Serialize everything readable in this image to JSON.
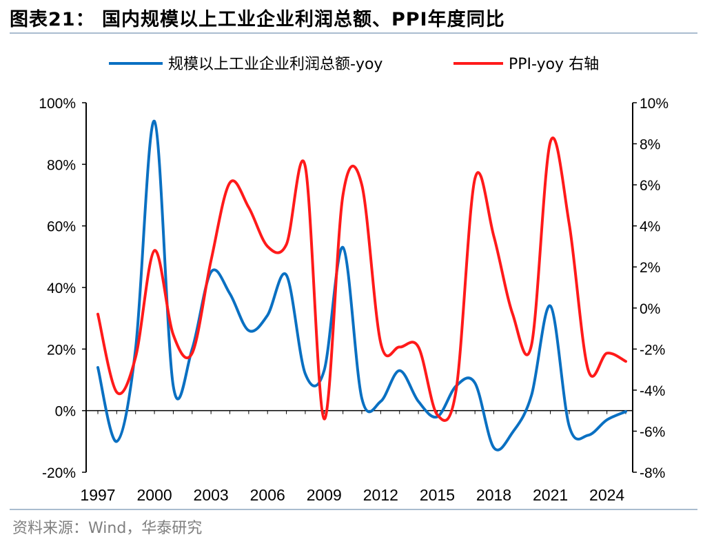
{
  "header": {
    "title": "图表21：  国内规模以上工业企业利润总额、PPI年度同比"
  },
  "footer": {
    "source": "资料来源：Wind，华泰研究"
  },
  "colors": {
    "profit_series": "#0a70c2",
    "ppi_series": "#ff1a1a",
    "axis": "#000000",
    "rule": "#a9bccf"
  },
  "chart_data": {
    "type": "line",
    "title": "",
    "x_min": 1997,
    "x_max": 2025,
    "x_tick_labels": [
      "1997",
      "2000",
      "2003",
      "2006",
      "2009",
      "2012",
      "2015",
      "2018",
      "2021",
      "2024"
    ],
    "x_tick_values": [
      1997,
      2000,
      2003,
      2006,
      2009,
      2012,
      2015,
      2018,
      2021,
      2024
    ],
    "left_axis": {
      "min": -20,
      "max": 100,
      "step": 20,
      "format": "percent",
      "ticks": [
        "-20%",
        "0%",
        "20%",
        "40%",
        "60%",
        "80%",
        "100%"
      ]
    },
    "right_axis": {
      "min": -8,
      "max": 10,
      "step": 2,
      "format": "percent",
      "ticks": [
        "-8%",
        "-6%",
        "-4%",
        "-2%",
        "0%",
        "2%",
        "4%",
        "6%",
        "8%",
        "10%"
      ]
    },
    "legend": {
      "position": "top-center"
    },
    "grid": false,
    "series": [
      {
        "name": "规模以上工业企业利润总额-yoy",
        "axis": "left",
        "color": "#0a70c2",
        "x": [
          1997,
          1998,
          1999,
          2000,
          2001,
          2002,
          2003,
          2004,
          2005,
          2006,
          2007,
          2008,
          2009,
          2010,
          2011,
          2012,
          2013,
          2014,
          2015,
          2016,
          2017,
          2018,
          2019,
          2020,
          2021,
          2022,
          2023,
          2024,
          2025
        ],
        "values": [
          14,
          -10,
          20,
          94,
          8,
          20,
          45,
          38,
          26,
          31,
          44,
          12,
          13,
          53,
          4,
          3,
          13,
          3,
          -2,
          8,
          9,
          -12,
          -7,
          5,
          34,
          -5,
          -8,
          -3,
          -0.3
        ]
      },
      {
        "name": "PPI-yoy 右轴",
        "axis": "right",
        "color": "#ff1a1a",
        "x": [
          1997,
          1998,
          1999,
          2000,
          2001,
          2002,
          2003,
          2004,
          2005,
          2006,
          2007,
          2008,
          2009,
          2010,
          2011,
          2012,
          2013,
          2014,
          2015,
          2016,
          2017,
          2018,
          2019,
          2020,
          2021,
          2022,
          2023,
          2024,
          2025
        ],
        "values": [
          -0.3,
          -4.1,
          -2.4,
          2.8,
          -1.3,
          -2.2,
          2.3,
          6.1,
          4.9,
          3.0,
          3.1,
          6.9,
          -5.4,
          5.5,
          6.0,
          -1.7,
          -1.9,
          -1.9,
          -5.2,
          -4.0,
          6.3,
          3.5,
          -0.3,
          -1.8,
          8.1,
          4.1,
          -3.0,
          -2.2,
          -2.6
        ]
      }
    ]
  }
}
